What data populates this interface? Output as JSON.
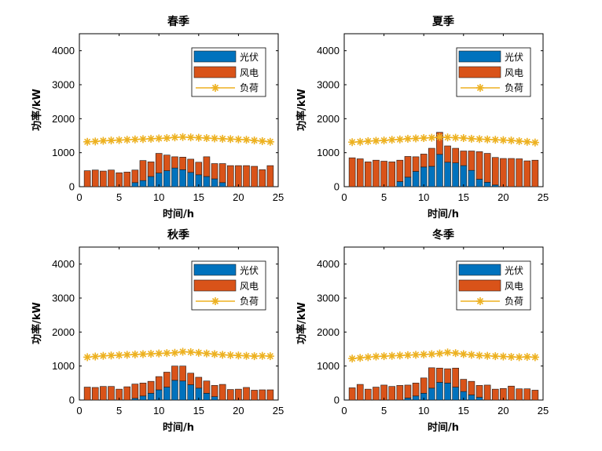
{
  "colors": {
    "pv": "#0072BD",
    "wind": "#D95319",
    "load": "#EDB120",
    "axis": "#000000"
  },
  "chart_data": [
    {
      "type": "bar",
      "title": "春季",
      "xlabel": "时间/h",
      "ylabel": "功率/kW",
      "xlim": [
        0,
        25
      ],
      "ylim": [
        0,
        4500
      ],
      "xticks": [
        0,
        5,
        10,
        15,
        20,
        25
      ],
      "yticks": [
        0,
        1000,
        2000,
        3000,
        4000
      ],
      "legend_position": "top-right",
      "stacked": true,
      "x": [
        1,
        2,
        3,
        4,
        5,
        6,
        7,
        8,
        9,
        10,
        11,
        12,
        13,
        14,
        15,
        16,
        17,
        18,
        19,
        20,
        21,
        22,
        23,
        24
      ],
      "series": [
        {
          "name": "光伏",
          "kind": "bar",
          "values": [
            0,
            0,
            0,
            0,
            0,
            0,
            120,
            180,
            300,
            400,
            470,
            550,
            500,
            420,
            350,
            300,
            230,
            120,
            0,
            0,
            0,
            0,
            0,
            0
          ]
        },
        {
          "name": "风电",
          "kind": "bar",
          "values": [
            470,
            490,
            460,
            490,
            410,
            430,
            370,
            590,
            430,
            580,
            460,
            330,
            370,
            390,
            370,
            580,
            450,
            560,
            620,
            620,
            620,
            600,
            500,
            620
          ]
        },
        {
          "name": "负荷",
          "kind": "line",
          "values": [
            1320,
            1330,
            1350,
            1360,
            1370,
            1380,
            1390,
            1400,
            1410,
            1420,
            1430,
            1450,
            1460,
            1450,
            1440,
            1430,
            1420,
            1410,
            1400,
            1390,
            1380,
            1360,
            1340,
            1320
          ]
        }
      ]
    },
    {
      "type": "bar",
      "title": "夏季",
      "xlabel": "时间/h",
      "ylabel": "功率/kW",
      "xlim": [
        0,
        25
      ],
      "ylim": [
        0,
        4500
      ],
      "xticks": [
        0,
        5,
        10,
        15,
        20,
        25
      ],
      "yticks": [
        0,
        1000,
        2000,
        3000,
        4000
      ],
      "legend_position": "top-right",
      "stacked": true,
      "x": [
        1,
        2,
        3,
        4,
        5,
        6,
        7,
        8,
        9,
        10,
        11,
        12,
        13,
        14,
        15,
        16,
        17,
        18,
        19,
        20,
        21,
        22,
        23,
        24
      ],
      "series": [
        {
          "name": "光伏",
          "kind": "bar",
          "values": [
            0,
            0,
            0,
            0,
            0,
            0,
            150,
            280,
            450,
            580,
            600,
            950,
            720,
            700,
            620,
            480,
            220,
            130,
            50,
            0,
            0,
            0,
            0,
            0
          ]
        },
        {
          "name": "风电",
          "kind": "bar",
          "values": [
            850,
            820,
            730,
            780,
            750,
            730,
            630,
            610,
            430,
            380,
            530,
            650,
            480,
            430,
            430,
            570,
            810,
            850,
            810,
            830,
            830,
            820,
            760,
            780
          ]
        },
        {
          "name": "负荷",
          "kind": "line",
          "values": [
            1310,
            1320,
            1340,
            1350,
            1360,
            1380,
            1390,
            1410,
            1420,
            1430,
            1440,
            1460,
            1450,
            1440,
            1430,
            1410,
            1400,
            1390,
            1380,
            1370,
            1360,
            1340,
            1320,
            1300
          ]
        }
      ]
    },
    {
      "type": "bar",
      "title": "秋季",
      "xlabel": "时间/h",
      "ylabel": "功率/kW",
      "xlim": [
        0,
        25
      ],
      "ylim": [
        0,
        4500
      ],
      "xticks": [
        0,
        5,
        10,
        15,
        20,
        25
      ],
      "yticks": [
        0,
        1000,
        2000,
        3000,
        4000
      ],
      "legend_position": "top-right",
      "stacked": true,
      "x": [
        1,
        2,
        3,
        4,
        5,
        6,
        7,
        8,
        9,
        10,
        11,
        12,
        13,
        14,
        15,
        16,
        17,
        18,
        19,
        20,
        21,
        22,
        23,
        24
      ],
      "series": [
        {
          "name": "光伏",
          "kind": "bar",
          "values": [
            0,
            0,
            0,
            0,
            0,
            0,
            50,
            120,
            200,
            300,
            380,
            580,
            560,
            450,
            350,
            200,
            100,
            0,
            0,
            0,
            0,
            0,
            0,
            0
          ]
        },
        {
          "name": "风电",
          "kind": "bar",
          "values": [
            380,
            370,
            400,
            400,
            320,
            390,
            420,
            380,
            350,
            390,
            440,
            420,
            440,
            340,
            320,
            360,
            330,
            460,
            310,
            320,
            370,
            290,
            300,
            300
          ]
        },
        {
          "name": "负荷",
          "kind": "line",
          "values": [
            1260,
            1280,
            1300,
            1310,
            1320,
            1330,
            1340,
            1350,
            1360,
            1370,
            1380,
            1390,
            1420,
            1410,
            1390,
            1370,
            1350,
            1330,
            1320,
            1310,
            1300,
            1290,
            1300,
            1290
          ]
        }
      ]
    },
    {
      "type": "bar",
      "title": "冬季",
      "xlabel": "时间/h",
      "ylabel": "功率/kW",
      "xlim": [
        0,
        25
      ],
      "ylim": [
        0,
        4500
      ],
      "xticks": [
        0,
        5,
        10,
        15,
        20,
        25
      ],
      "yticks": [
        0,
        1000,
        2000,
        3000,
        4000
      ],
      "legend_position": "top-right",
      "stacked": true,
      "x": [
        1,
        2,
        3,
        4,
        5,
        6,
        7,
        8,
        9,
        10,
        11,
        12,
        13,
        14,
        15,
        16,
        17,
        18,
        19,
        20,
        21,
        22,
        23,
        24
      ],
      "series": [
        {
          "name": "光伏",
          "kind": "bar",
          "values": [
            0,
            0,
            0,
            0,
            0,
            0,
            0,
            60,
            120,
            200,
            350,
            520,
            500,
            380,
            250,
            150,
            80,
            0,
            0,
            0,
            0,
            0,
            0,
            0
          ]
        },
        {
          "name": "风电",
          "kind": "bar",
          "values": [
            360,
            460,
            320,
            380,
            440,
            400,
            430,
            380,
            380,
            450,
            600,
            420,
            420,
            560,
            360,
            400,
            350,
            440,
            320,
            340,
            410,
            330,
            330,
            290
          ]
        },
        {
          "name": "负荷",
          "kind": "line",
          "values": [
            1220,
            1240,
            1260,
            1280,
            1290,
            1300,
            1310,
            1320,
            1330,
            1340,
            1350,
            1370,
            1400,
            1380,
            1350,
            1330,
            1310,
            1300,
            1290,
            1280,
            1270,
            1260,
            1270,
            1260
          ]
        }
      ]
    }
  ]
}
